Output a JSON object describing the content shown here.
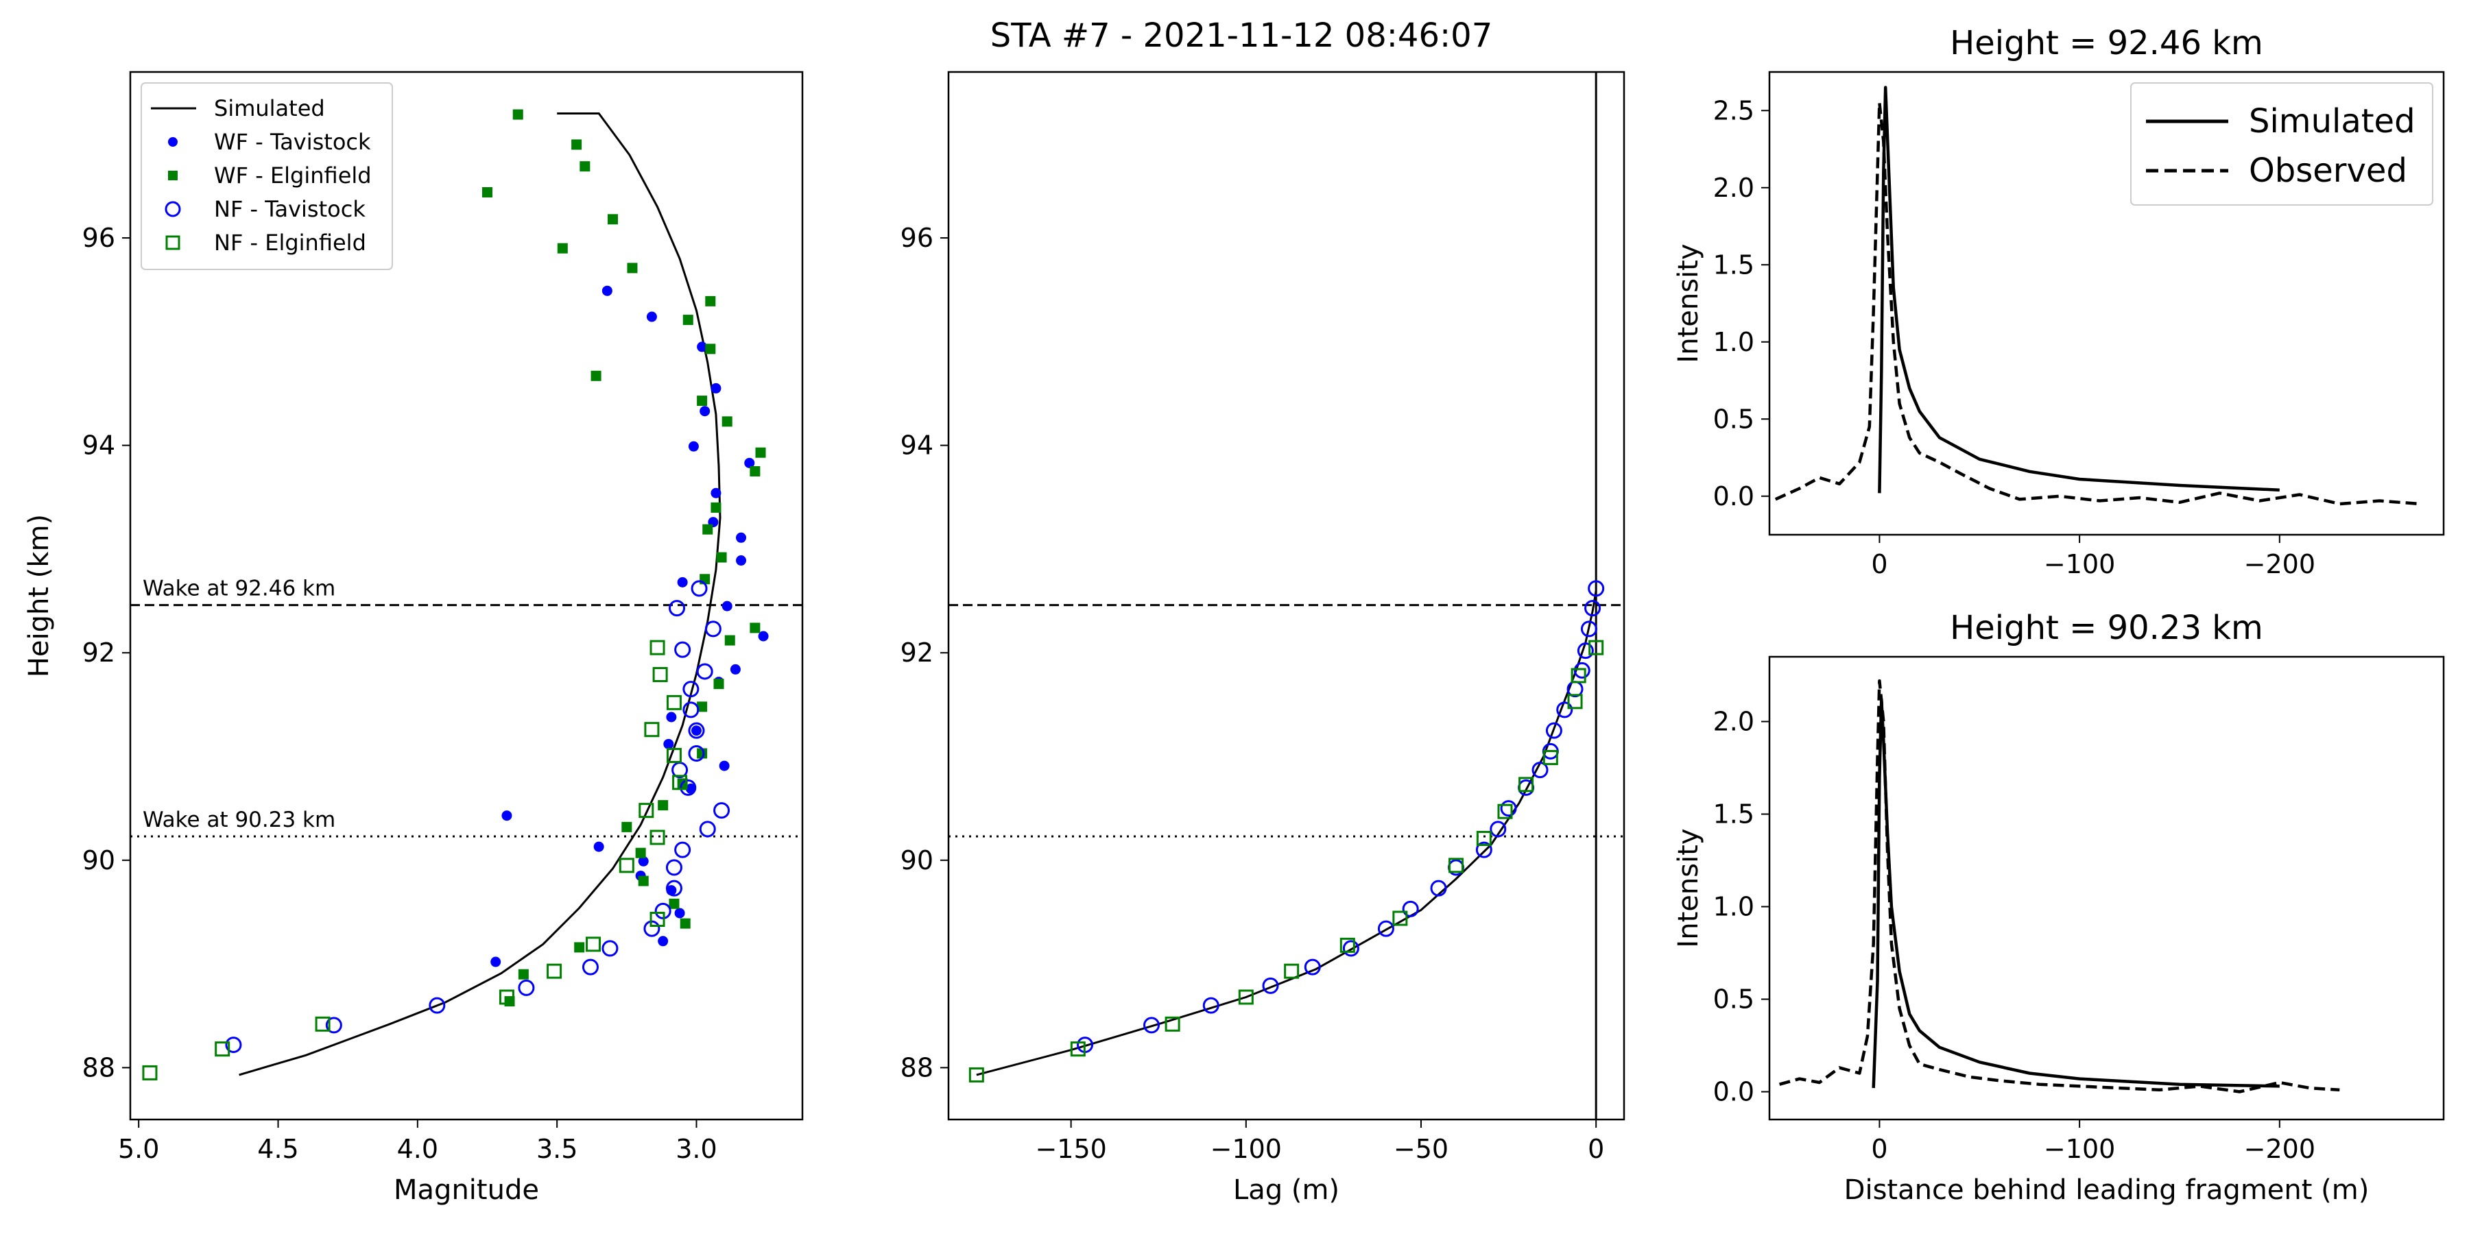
{
  "figure": {
    "title": "STA #7 - 2021-11-12 08:46:07"
  },
  "colors": {
    "tavistock": "#0000ff",
    "elginfield": "#008000",
    "simulated": "#000000"
  },
  "chart_data": [
    {
      "type": "scatter",
      "title": "",
      "xlabel": "Magnitude",
      "ylabel": "Height (km)",
      "xlim": [
        5.03,
        2.62
      ],
      "ylim": [
        87.5,
        97.6
      ],
      "x_inverted": true,
      "xticks": [
        "5.0",
        "4.5",
        "4.0",
        "3.5",
        "3.0"
      ],
      "yticks": [
        "88",
        "90",
        "92",
        "94",
        "96"
      ],
      "legend_position": "upper-left",
      "hlines": [
        {
          "y": 92.46,
          "style": "dashed",
          "label": "Wake at 92.46 km"
        },
        {
          "y": 90.23,
          "style": "dotted",
          "label": "Wake at 90.23 km"
        }
      ],
      "series": [
        {
          "name": "Simulated",
          "kind": "line",
          "points": [
            [
              4.64,
              87.93
            ],
            [
              4.4,
              88.12
            ],
            [
              4.1,
              88.42
            ],
            [
              3.9,
              88.63
            ],
            [
              3.7,
              88.91
            ],
            [
              3.55,
              89.19
            ],
            [
              3.42,
              89.54
            ],
            [
              3.3,
              89.92
            ],
            [
              3.2,
              90.34
            ],
            [
              3.12,
              90.8
            ],
            [
              3.05,
              91.3
            ],
            [
              3.0,
              91.8
            ],
            [
              2.96,
              92.3
            ],
            [
              2.93,
              92.8
            ],
            [
              2.915,
              93.3
            ],
            [
              2.92,
              93.8
            ],
            [
              2.93,
              94.3
            ],
            [
              2.96,
              94.8
            ],
            [
              3.0,
              95.3
            ],
            [
              3.06,
              95.8
            ],
            [
              3.14,
              96.3
            ],
            [
              3.24,
              96.8
            ],
            [
              3.35,
              97.2
            ],
            [
              3.5,
              97.2
            ]
          ]
        },
        {
          "name": "WF - Tavistock",
          "kind": "points",
          "marker": "dot",
          "points": [
            [
              3.32,
              95.49
            ],
            [
              3.16,
              95.24
            ],
            [
              2.98,
              94.95
            ],
            [
              2.93,
              94.55
            ],
            [
              2.97,
              94.33
            ],
            [
              3.01,
              93.99
            ],
            [
              2.81,
              93.83
            ],
            [
              2.93,
              93.54
            ],
            [
              2.94,
              93.26
            ],
            [
              2.84,
              93.11
            ],
            [
              2.84,
              92.89
            ],
            [
              3.05,
              92.68
            ],
            [
              2.89,
              92.45
            ],
            [
              2.76,
              92.16
            ],
            [
              2.86,
              91.84
            ],
            [
              2.92,
              91.72
            ],
            [
              3.09,
              91.38
            ],
            [
              3.0,
              91.25
            ],
            [
              3.1,
              91.12
            ],
            [
              2.9,
              90.91
            ],
            [
              3.02,
              90.69
            ],
            [
              3.68,
              90.43
            ],
            [
              3.35,
              90.13
            ],
            [
              3.19,
              89.99
            ],
            [
              3.2,
              89.85
            ],
            [
              3.09,
              89.71
            ],
            [
              3.06,
              89.49
            ],
            [
              3.12,
              89.22
            ],
            [
              3.72,
              89.02
            ]
          ]
        },
        {
          "name": "WF - Elginfield",
          "kind": "points",
          "marker": "square",
          "points": [
            [
              3.64,
              97.19
            ],
            [
              3.43,
              96.9
            ],
            [
              3.75,
              96.44
            ],
            [
              3.4,
              96.69
            ],
            [
              3.3,
              96.18
            ],
            [
              3.48,
              95.9
            ],
            [
              3.23,
              95.71
            ],
            [
              2.95,
              95.39
            ],
            [
              3.03,
              95.21
            ],
            [
              2.95,
              94.93
            ],
            [
              3.36,
              94.67
            ],
            [
              2.98,
              94.43
            ],
            [
              2.89,
              94.23
            ],
            [
              2.77,
              93.93
            ],
            [
              2.79,
              93.75
            ],
            [
              2.93,
              93.4
            ],
            [
              2.96,
              93.19
            ],
            [
              2.91,
              92.92
            ],
            [
              2.97,
              92.71
            ],
            [
              2.79,
              92.24
            ],
            [
              2.88,
              92.12
            ],
            [
              2.92,
              91.7
            ],
            [
              2.98,
              91.48
            ],
            [
              2.98,
              91.03
            ],
            [
              3.05,
              90.74
            ],
            [
              3.12,
              90.53
            ],
            [
              3.25,
              90.32
            ],
            [
              3.2,
              90.07
            ],
            [
              3.19,
              89.8
            ],
            [
              3.08,
              89.58
            ],
            [
              3.04,
              89.39
            ],
            [
              3.42,
              89.16
            ],
            [
              3.62,
              88.9
            ],
            [
              3.67,
              88.64
            ]
          ]
        },
        {
          "name": "NF - Tavistock",
          "kind": "points",
          "marker": "open-circle",
          "points": [
            [
              4.66,
              88.22
            ],
            [
              4.3,
              88.41
            ],
            [
              3.93,
              88.6
            ],
            [
              3.61,
              88.77
            ],
            [
              3.38,
              88.97
            ],
            [
              3.31,
              89.15
            ],
            [
              3.16,
              89.34
            ],
            [
              3.12,
              89.51
            ],
            [
              3.08,
              89.73
            ],
            [
              3.08,
              89.93
            ],
            [
              3.05,
              90.1
            ],
            [
              2.96,
              90.3
            ],
            [
              2.91,
              90.48
            ],
            [
              3.03,
              90.7
            ],
            [
              3.06,
              90.87
            ],
            [
              3.0,
              91.03
            ],
            [
              3.0,
              91.25
            ],
            [
              3.02,
              91.45
            ],
            [
              3.02,
              91.65
            ],
            [
              2.97,
              91.82
            ],
            [
              3.05,
              92.03
            ],
            [
              2.94,
              92.23
            ],
            [
              3.07,
              92.43
            ],
            [
              2.99,
              92.62
            ]
          ]
        },
        {
          "name": "NF - Elginfield",
          "kind": "points",
          "marker": "open-square",
          "points": [
            [
              4.96,
              87.95
            ],
            [
              4.7,
              88.18
            ],
            [
              4.34,
              88.42
            ],
            [
              3.68,
              88.68
            ],
            [
              3.51,
              88.93
            ],
            [
              3.37,
              89.19
            ],
            [
              3.14,
              89.43
            ],
            [
              3.25,
              89.95
            ],
            [
              3.14,
              90.22
            ],
            [
              3.18,
              90.48
            ],
            [
              3.06,
              90.75
            ],
            [
              3.08,
              91.01
            ],
            [
              3.16,
              91.26
            ],
            [
              3.08,
              91.52
            ],
            [
              3.13,
              91.79
            ],
            [
              3.14,
              92.05
            ]
          ]
        }
      ]
    },
    {
      "type": "scatter",
      "title": "STA #7 - 2021-11-12 08:46:07",
      "xlabel": "Lag (m)",
      "ylabel": "",
      "xlim": [
        -185,
        8
      ],
      "ylim": [
        87.5,
        97.6
      ],
      "xticks": [
        "−150",
        "−100",
        "−50",
        "0"
      ],
      "yticks": [
        "88",
        "90",
        "92",
        "94",
        "96"
      ],
      "hlines": [
        {
          "y": 92.46,
          "style": "dashed"
        },
        {
          "y": 90.23,
          "style": "dotted"
        }
      ],
      "vlines": [
        {
          "x": 0,
          "style": "solid"
        }
      ],
      "series": [
        {
          "name": "Simulated",
          "kind": "line",
          "points": [
            [
              -177,
              87.93
            ],
            [
              -150,
              88.17
            ],
            [
              -125,
              88.42
            ],
            [
              -100,
              88.68
            ],
            [
              -80,
              88.95
            ],
            [
              -60,
              89.33
            ],
            [
              -50,
              89.52
            ],
            [
              -40,
              89.82
            ],
            [
              -30,
              90.15
            ],
            [
              -22,
              90.55
            ],
            [
              -15,
              91.0
            ],
            [
              -10,
              91.45
            ],
            [
              -6,
              91.8
            ],
            [
              -3,
              92.1
            ],
            [
              -1,
              92.4
            ],
            [
              0,
              92.6
            ]
          ]
        },
        {
          "name": "NF - Tavistock",
          "kind": "points",
          "marker": "open-circle",
          "points": [
            [
              -146,
              88.22
            ],
            [
              -127,
              88.41
            ],
            [
              -110,
              88.6
            ],
            [
              -93,
              88.79
            ],
            [
              -81,
              88.97
            ],
            [
              -70,
              89.15
            ],
            [
              -60,
              89.34
            ],
            [
              -53,
              89.53
            ],
            [
              -45,
              89.73
            ],
            [
              -40,
              89.93
            ],
            [
              -32,
              90.1
            ],
            [
              -28,
              90.3
            ],
            [
              -25,
              90.5
            ],
            [
              -20,
              90.7
            ],
            [
              -16,
              90.87
            ],
            [
              -13,
              91.05
            ],
            [
              -12,
              91.25
            ],
            [
              -9,
              91.45
            ],
            [
              -6,
              91.65
            ],
            [
              -4,
              91.83
            ],
            [
              -3,
              92.02
            ],
            [
              -2,
              92.23
            ],
            [
              -1,
              92.43
            ],
            [
              0,
              92.62
            ]
          ]
        },
        {
          "name": "NF - Elginfield",
          "kind": "points",
          "marker": "open-square",
          "points": [
            [
              -177,
              87.93
            ],
            [
              -148,
              88.18
            ],
            [
              -121,
              88.42
            ],
            [
              -100,
              88.68
            ],
            [
              -87,
              88.93
            ],
            [
              -71,
              89.18
            ],
            [
              -56,
              89.44
            ],
            [
              -40,
              89.95
            ],
            [
              -32,
              90.21
            ],
            [
              -26,
              90.47
            ],
            [
              -20,
              90.73
            ],
            [
              -13,
              90.99
            ],
            [
              -6,
              91.53
            ],
            [
              -5,
              91.78
            ],
            [
              0,
              92.05
            ]
          ]
        }
      ]
    },
    {
      "type": "line",
      "title": "Height = 92.46 km",
      "xlabel": "",
      "ylabel": "Intensity",
      "xlim": [
        55,
        -282
      ],
      "ylim": [
        -0.25,
        2.75
      ],
      "x_inverted": true,
      "xticks": [
        "0",
        "−100",
        "−200"
      ],
      "yticks": [
        "0.0",
        "0.5",
        "1.0",
        "1.5",
        "2.0",
        "2.5"
      ],
      "legend_position": "upper-right",
      "series": [
        {
          "name": "Simulated",
          "style": "solid",
          "x": [
            0,
            -1,
            -2,
            -3,
            -5,
            -7,
            -10,
            -15,
            -20,
            -30,
            -50,
            -75,
            -100,
            -150,
            -200
          ],
          "y": [
            0.02,
            0.8,
            2.1,
            2.65,
            2.0,
            1.35,
            0.95,
            0.7,
            0.55,
            0.38,
            0.24,
            0.16,
            0.11,
            0.07,
            0.04
          ]
        },
        {
          "name": "Observed",
          "style": "dashed",
          "x": [
            52,
            40,
            30,
            20,
            10,
            5,
            3,
            1,
            0,
            -2,
            -4,
            -7,
            -10,
            -15,
            -20,
            -30,
            -40,
            -55,
            -70,
            -90,
            -110,
            -130,
            -150,
            -170,
            -190,
            -210,
            -230,
            -250,
            -270
          ],
          "y": [
            -0.02,
            0.05,
            0.12,
            0.08,
            0.22,
            0.45,
            1.2,
            2.1,
            2.55,
            2.3,
            1.7,
            1.0,
            0.6,
            0.38,
            0.28,
            0.22,
            0.15,
            0.05,
            -0.02,
            0.0,
            -0.03,
            -0.01,
            -0.04,
            0.02,
            -0.03,
            0.01,
            -0.05,
            -0.03,
            -0.05
          ]
        }
      ]
    },
    {
      "type": "line",
      "title": "Height = 90.23 km",
      "xlabel": "Distance behind leading fragment (m)",
      "ylabel": "Intensity",
      "xlim": [
        55,
        -282
      ],
      "ylim": [
        -0.15,
        2.35
      ],
      "x_inverted": true,
      "xticks": [
        "0",
        "−100",
        "−200"
      ],
      "yticks": [
        "0.0",
        "0.5",
        "1.0",
        "1.5",
        "2.0"
      ],
      "series": [
        {
          "name": "Simulated",
          "style": "solid",
          "x": [
            3,
            1,
            0,
            -1,
            -2,
            -4,
            -6,
            -10,
            -15,
            -20,
            -30,
            -50,
            -75,
            -100,
            -150,
            -200
          ],
          "y": [
            0.02,
            0.6,
            1.7,
            2.12,
            1.9,
            1.4,
            1.0,
            0.65,
            0.42,
            0.33,
            0.24,
            0.16,
            0.1,
            0.07,
            0.04,
            0.03
          ]
        },
        {
          "name": "Observed",
          "style": "dashed",
          "x": [
            50,
            40,
            30,
            20,
            10,
            6,
            3,
            1,
            0,
            -2,
            -4,
            -6,
            -10,
            -15,
            -20,
            -30,
            -45,
            -60,
            -80,
            -100,
            -120,
            -140,
            -160,
            -180,
            -200,
            -215,
            -230
          ],
          "y": [
            0.04,
            0.07,
            0.05,
            0.13,
            0.1,
            0.3,
            0.8,
            1.8,
            2.22,
            2.0,
            1.3,
            0.8,
            0.45,
            0.25,
            0.15,
            0.12,
            0.08,
            0.06,
            0.04,
            0.03,
            0.02,
            0.01,
            0.03,
            0.0,
            0.05,
            0.02,
            0.01
          ]
        }
      ]
    }
  ]
}
